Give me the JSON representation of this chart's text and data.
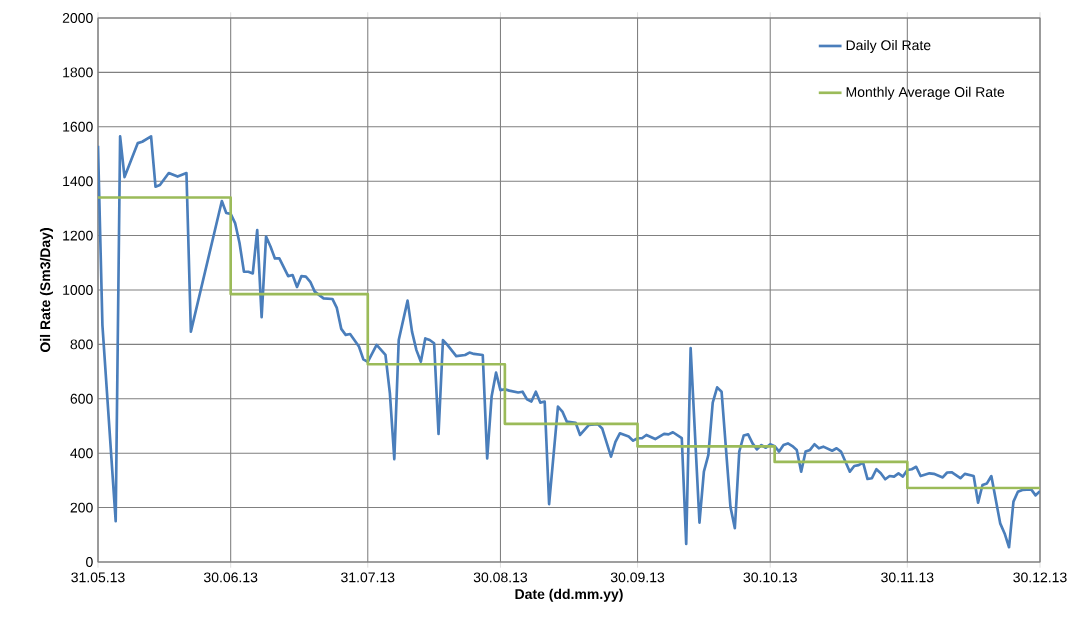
{
  "chart_data": {
    "type": "line",
    "xlabel": "Date (dd.mm.yy)",
    "ylabel": "Oil Rate (Sm3/Day)",
    "xlim": [
      "2013-05-31",
      "2013-12-30"
    ],
    "xticks": [
      {
        "value": "2013-05-31",
        "label": "31.05.13"
      },
      {
        "value": "2013-06-30",
        "label": "30.06.13"
      },
      {
        "value": "2013-07-31",
        "label": "31.07.13"
      },
      {
        "value": "2013-08-30",
        "label": "30.08.13"
      },
      {
        "value": "2013-09-30",
        "label": "30.09.13"
      },
      {
        "value": "2013-10-30",
        "label": "30.10.13"
      },
      {
        "value": "2013-11-30",
        "label": "30.11.13"
      },
      {
        "value": "2013-12-30",
        "label": "30.12.13"
      }
    ],
    "ylim": [
      0,
      2000
    ],
    "yticks": [
      0,
      200,
      400,
      600,
      800,
      1000,
      1200,
      1400,
      1600,
      1800,
      2000
    ],
    "grid": true,
    "legend": "top right",
    "series": [
      {
        "name": "Daily Oil Rate",
        "color": "#4a7ebb",
        "x": [
          "2013-05-31",
          "2013-06-01",
          "2013-06-04",
          "2013-06-05",
          "2013-06-06",
          "2013-06-09",
          "2013-06-10",
          "2013-06-12",
          "2013-06-13",
          "2013-06-14",
          "2013-06-16",
          "2013-06-18",
          "2013-06-20",
          "2013-06-21",
          "2013-06-28",
          "2013-06-29",
          "2013-06-30",
          "2013-07-01",
          "2013-07-02",
          "2013-07-03",
          "2013-07-04",
          "2013-07-05",
          "2013-07-06",
          "2013-07-07",
          "2013-07-08",
          "2013-07-09",
          "2013-07-10",
          "2013-07-11",
          "2013-07-13",
          "2013-07-14",
          "2013-07-15",
          "2013-07-16",
          "2013-07-17",
          "2013-07-18",
          "2013-07-19",
          "2013-07-21",
          "2013-07-23",
          "2013-07-24",
          "2013-07-25",
          "2013-07-26",
          "2013-07-27",
          "2013-07-29",
          "2013-07-30",
          "2013-07-31",
          "2013-08-02",
          "2013-08-04",
          "2013-08-05",
          "2013-08-06",
          "2013-08-07",
          "2013-08-09",
          "2013-08-10",
          "2013-08-11",
          "2013-08-12",
          "2013-08-13",
          "2013-08-14",
          "2013-08-15",
          "2013-08-16",
          "2013-08-17",
          "2013-08-18",
          "2013-08-20",
          "2013-08-22",
          "2013-08-23",
          "2013-08-24",
          "2013-08-26",
          "2013-08-27",
          "2013-08-28",
          "2013-08-29",
          "2013-08-30",
          "2013-08-31",
          "2013-09-01",
          "2013-09-03",
          "2013-09-04",
          "2013-09-05",
          "2013-09-06",
          "2013-09-07",
          "2013-09-08",
          "2013-09-09",
          "2013-09-10",
          "2013-09-12",
          "2013-09-13",
          "2013-09-14",
          "2013-09-16",
          "2013-09-17",
          "2013-09-19",
          "2013-09-21",
          "2013-09-22",
          "2013-09-24",
          "2013-09-25",
          "2013-09-26",
          "2013-09-28",
          "2013-09-29",
          "2013-09-30",
          "2013-10-01",
          "2013-10-02",
          "2013-10-04",
          "2013-10-06",
          "2013-10-07",
          "2013-10-08",
          "2013-10-10",
          "2013-10-11",
          "2013-10-12",
          "2013-10-14",
          "2013-10-15",
          "2013-10-16",
          "2013-10-17",
          "2013-10-18",
          "2013-10-19",
          "2013-10-21",
          "2013-10-22",
          "2013-10-23",
          "2013-10-24",
          "2013-10-25",
          "2013-10-26",
          "2013-10-27",
          "2013-10-28",
          "2013-10-29",
          "2013-10-30",
          "2013-10-31",
          "2013-11-01",
          "2013-11-02",
          "2013-11-03",
          "2013-11-04",
          "2013-11-05",
          "2013-11-06",
          "2013-11-07",
          "2013-11-08",
          "2013-11-09",
          "2013-11-10",
          "2013-11-11",
          "2013-11-13",
          "2013-11-14",
          "2013-11-15",
          "2013-11-16",
          "2013-11-17",
          "2013-11-18",
          "2013-11-19",
          "2013-11-20",
          "2013-11-21",
          "2013-11-22",
          "2013-11-23",
          "2013-11-24",
          "2013-11-25",
          "2013-11-26",
          "2013-11-27",
          "2013-11-28",
          "2013-11-29",
          "2013-11-30",
          "2013-12-01",
          "2013-12-02",
          "2013-12-03",
          "2013-12-05",
          "2013-12-06",
          "2013-12-08",
          "2013-12-09",
          "2013-12-10",
          "2013-12-12",
          "2013-12-13",
          "2013-12-15",
          "2013-12-16",
          "2013-12-17",
          "2013-12-18",
          "2013-12-19",
          "2013-12-21",
          "2013-12-22",
          "2013-12-23",
          "2013-12-24",
          "2013-12-25",
          "2013-12-26",
          "2013-12-28",
          "2013-12-29",
          "2013-12-30"
        ],
        "values": [
          1530,
          870,
          150,
          1565,
          1415,
          1540,
          1545,
          1565,
          1380,
          1386,
          1430,
          1417,
          1430,
          847,
          1327,
          1283,
          1280,
          1246,
          1173,
          1067,
          1067,
          1061,
          1220,
          900,
          1196,
          1160,
          1116,
          1116,
          1051,
          1055,
          1011,
          1051,
          1049,
          1030,
          994,
          969,
          967,
          934,
          857,
          835,
          838,
          792,
          745,
          736,
          798,
          761,
          620,
          378,
          816,
          961,
          847,
          779,
          736,
          822,
          816,
          804,
          471,
          816,
          798,
          757,
          761,
          770,
          765,
          761,
          381,
          608,
          696,
          632,
          635,
          630,
          623,
          626,
          598,
          590,
          626,
          586,
          590,
          213,
          571,
          553,
          516,
          512,
          467,
          504,
          507,
          491,
          387,
          442,
          473,
          461,
          446,
          455,
          455,
          467,
          452,
          471,
          469,
          477,
          455,
          66,
          786,
          145,
          332,
          393,
          586,
          642,
          626,
          203,
          124,
          406,
          465,
          469,
          436,
          414,
          430,
          420,
          433,
          426,
          406,
          430,
          436,
          426,
          412,
          332,
          406,
          412,
          433,
          418,
          424,
          409,
          418,
          406,
          369,
          332,
          353,
          356,
          365,
          305,
          308,
          341,
          326,
          304,
          316,
          314,
          326,
          314,
          338,
          341,
          350,
          316,
          326,
          324,
          311,
          329,
          330,
          308,
          324,
          316,
          218,
          283,
          289,
          316,
          142,
          105,
          54,
          222,
          258,
          265,
          267,
          245,
          260
        ]
      },
      {
        "name": "Monthly Average Oil Rate",
        "color": "#9bbb59",
        "x": [
          "2013-05-31",
          "2013-06-30",
          "2013-06-30",
          "2013-07-31",
          "2013-07-31",
          "2013-08-31",
          "2013-08-31",
          "2013-09-30",
          "2013-09-30",
          "2013-10-31",
          "2013-10-31",
          "2013-11-30",
          "2013-11-30",
          "2013-12-30"
        ],
        "values": [
          1340,
          1340,
          985,
          985,
          727,
          727,
          508,
          508,
          425,
          425,
          368,
          368,
          272,
          272
        ]
      }
    ]
  }
}
